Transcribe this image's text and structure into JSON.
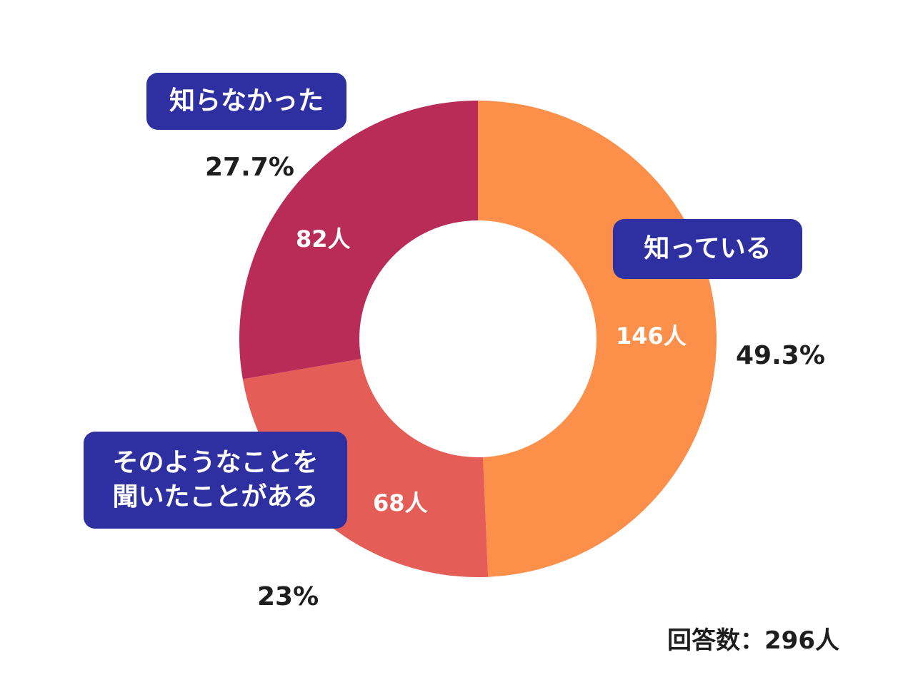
{
  "chart_data": {
    "type": "pie",
    "variant": "donut",
    "categories": [
      "知っている",
      "そのようなことを\n聞いたことがある",
      "知らなかった"
    ],
    "values": [
      146,
      68,
      82
    ],
    "percent_labels": [
      "49.3%",
      "23%",
      "27.7%"
    ],
    "count_labels": [
      "146人",
      "68人",
      "82人"
    ],
    "colors": [
      "#fc8f4a",
      "#e45d57",
      "#b82c57"
    ],
    "total_label": "回答数：296人",
    "start_angle": "12 o'clock",
    "direction": "clockwise"
  },
  "colors": {
    "label_box": "#2e2fa0",
    "background": "#ffffff"
  }
}
